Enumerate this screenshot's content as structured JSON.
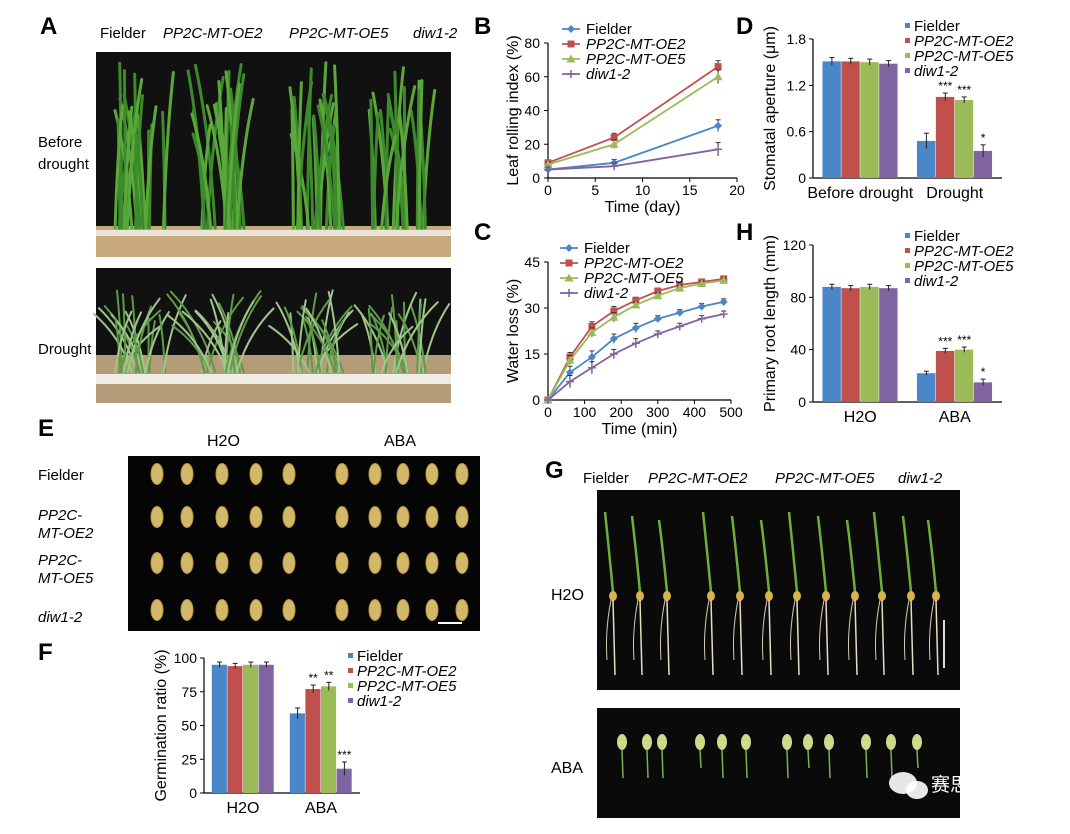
{
  "panels": {
    "A": "A",
    "B": "B",
    "C": "C",
    "D": "D",
    "E": "E",
    "F": "F",
    "G": "G",
    "H": "H"
  },
  "genotypes": [
    "Fielder",
    "PP2C-MT-OE2",
    "PP2C-MT-OE5",
    "diw1-2"
  ],
  "colors": {
    "Fielder": "#4a86c8",
    "PP2C-MT-OE2": "#c0504d",
    "PP2C-MT-OE5": "#9bbb59",
    "diw1-2": "#8064a2"
  },
  "panelA": {
    "before_line1": "Before",
    "before_line2": "drought",
    "drought": "Drought"
  },
  "panelE": {
    "col_h2o": "H2O",
    "col_aba": "ABA",
    "rows": [
      "Fielder",
      "PP2C-",
      "MT-OE2",
      "PP2C-",
      "MT-OE5",
      "diw1-2"
    ]
  },
  "panelG": {
    "row_h2o": "H2O",
    "row_aba": "ABA"
  },
  "watermark": "赛思基因",
  "chart_data": [
    {
      "id": "B",
      "type": "line",
      "xlabel": "Time (day)",
      "ylabel": "Leaf rolling index (%)",
      "xlim": [
        0,
        20
      ],
      "ylim": [
        0,
        80
      ],
      "xticks": [
        0,
        5,
        10,
        15,
        20
      ],
      "yticks": [
        0,
        20,
        40,
        60,
        80
      ],
      "x": [
        0,
        7,
        18
      ],
      "series": [
        {
          "name": "Fielder",
          "values": [
            5,
            9,
            31
          ],
          "err": [
            1.5,
            2,
            3.5
          ]
        },
        {
          "name": "PP2C-MT-OE2",
          "values": [
            9,
            24,
            66
          ],
          "err": [
            1.5,
            2.5,
            3.5
          ]
        },
        {
          "name": "PP2C-MT-OE5",
          "values": [
            8,
            20,
            60
          ],
          "err": [
            1.5,
            2.5,
            4
          ]
        },
        {
          "name": "diw1-2",
          "values": [
            5,
            7,
            17
          ],
          "err": [
            1.5,
            2,
            4
          ]
        }
      ]
    },
    {
      "id": "C",
      "type": "line",
      "xlabel": "Time (min)",
      "ylabel": "Water loss (%)",
      "xlim": [
        0,
        500
      ],
      "ylim": [
        0,
        45
      ],
      "xticks": [
        0,
        100,
        200,
        300,
        400,
        500
      ],
      "yticks": [
        0,
        15,
        30,
        45
      ],
      "x": [
        0,
        60,
        120,
        180,
        240,
        300,
        360,
        420,
        480
      ],
      "series": [
        {
          "name": "Fielder",
          "values": [
            0,
            9,
            14,
            20,
            23.5,
            26.5,
            28.5,
            30.5,
            32
          ],
          "err": [
            0,
            2,
            2,
            1.5,
            1.5,
            1,
            1,
            1,
            1
          ]
        },
        {
          "name": "PP2C-MT-OE2",
          "values": [
            0,
            14,
            24,
            29,
            32.5,
            35.5,
            37.5,
            38.5,
            39.5
          ],
          "err": [
            0,
            1.5,
            1.5,
            1.5,
            1,
            1,
            1,
            0.8,
            0.8
          ]
        },
        {
          "name": "PP2C-MT-OE5",
          "values": [
            0,
            13,
            22,
            27,
            31,
            34,
            36.5,
            38,
            39
          ],
          "err": [
            0,
            1.5,
            1.5,
            1.5,
            1,
            1,
            1,
            0.8,
            0.8
          ]
        },
        {
          "name": "diw1-2",
          "values": [
            0,
            6,
            10.5,
            15,
            18.5,
            21.5,
            24,
            26.5,
            28
          ],
          "err": [
            0,
            2,
            2,
            1.5,
            1.5,
            1,
            1,
            1,
            1
          ]
        }
      ]
    },
    {
      "id": "D",
      "type": "bar",
      "ylabel": "Stomatal aperture (μm)",
      "ylim": [
        0,
        1.8
      ],
      "yticks": [
        0,
        0.6,
        1.2,
        1.8
      ],
      "categories": [
        "Before drought",
        "Drought"
      ],
      "series": [
        {
          "name": "Fielder",
          "values": [
            1.51,
            0.48
          ],
          "err": [
            0.05,
            0.1
          ]
        },
        {
          "name": "PP2C-MT-OE2",
          "values": [
            1.51,
            1.05
          ],
          "err": [
            0.04,
            0.05
          ]
        },
        {
          "name": "PP2C-MT-OE5",
          "values": [
            1.5,
            1.01
          ],
          "err": [
            0.04,
            0.04
          ]
        },
        {
          "name": "diw1-2",
          "values": [
            1.48,
            0.35
          ],
          "err": [
            0.04,
            0.08
          ]
        }
      ],
      "annotations": [
        [
          "",
          "",
          "",
          ""
        ],
        [
          "",
          "***",
          "***",
          "*"
        ]
      ]
    },
    {
      "id": "H",
      "type": "bar",
      "ylabel": "Primary root length (mm)",
      "ylim": [
        0,
        120
      ],
      "yticks": [
        0,
        40,
        80,
        120
      ],
      "categories": [
        "H2O",
        "ABA"
      ],
      "series": [
        {
          "name": "Fielder",
          "values": [
            88,
            22
          ],
          "err": [
            2,
            1.5
          ]
        },
        {
          "name": "PP2C-MT-OE2",
          "values": [
            87,
            39
          ],
          "err": [
            2,
            2
          ]
        },
        {
          "name": "PP2C-MT-OE5",
          "values": [
            88,
            40
          ],
          "err": [
            2,
            2
          ]
        },
        {
          "name": "diw1-2",
          "values": [
            87,
            15
          ],
          "err": [
            2,
            2.5
          ]
        }
      ],
      "annotations": [
        [
          "",
          "",
          "",
          ""
        ],
        [
          "",
          "***",
          "***",
          "*"
        ]
      ]
    },
    {
      "id": "F",
      "type": "bar",
      "ylabel": "Germination ratio (%)",
      "ylim": [
        0,
        100
      ],
      "yticks": [
        0,
        25,
        50,
        75,
        100
      ],
      "categories": [
        "H2O",
        "ABA"
      ],
      "series": [
        {
          "name": "Fielder",
          "values": [
            95,
            59
          ],
          "err": [
            2,
            4
          ]
        },
        {
          "name": "PP2C-MT-OE2",
          "values": [
            94,
            77
          ],
          "err": [
            2,
            3
          ]
        },
        {
          "name": "PP2C-MT-OE5",
          "values": [
            95,
            79
          ],
          "err": [
            2,
            3
          ]
        },
        {
          "name": "diw1-2",
          "values": [
            95,
            18
          ],
          "err": [
            2,
            5
          ]
        }
      ],
      "annotations": [
        [
          "",
          "",
          "",
          ""
        ],
        [
          "",
          "**",
          "**",
          "***"
        ]
      ]
    }
  ]
}
